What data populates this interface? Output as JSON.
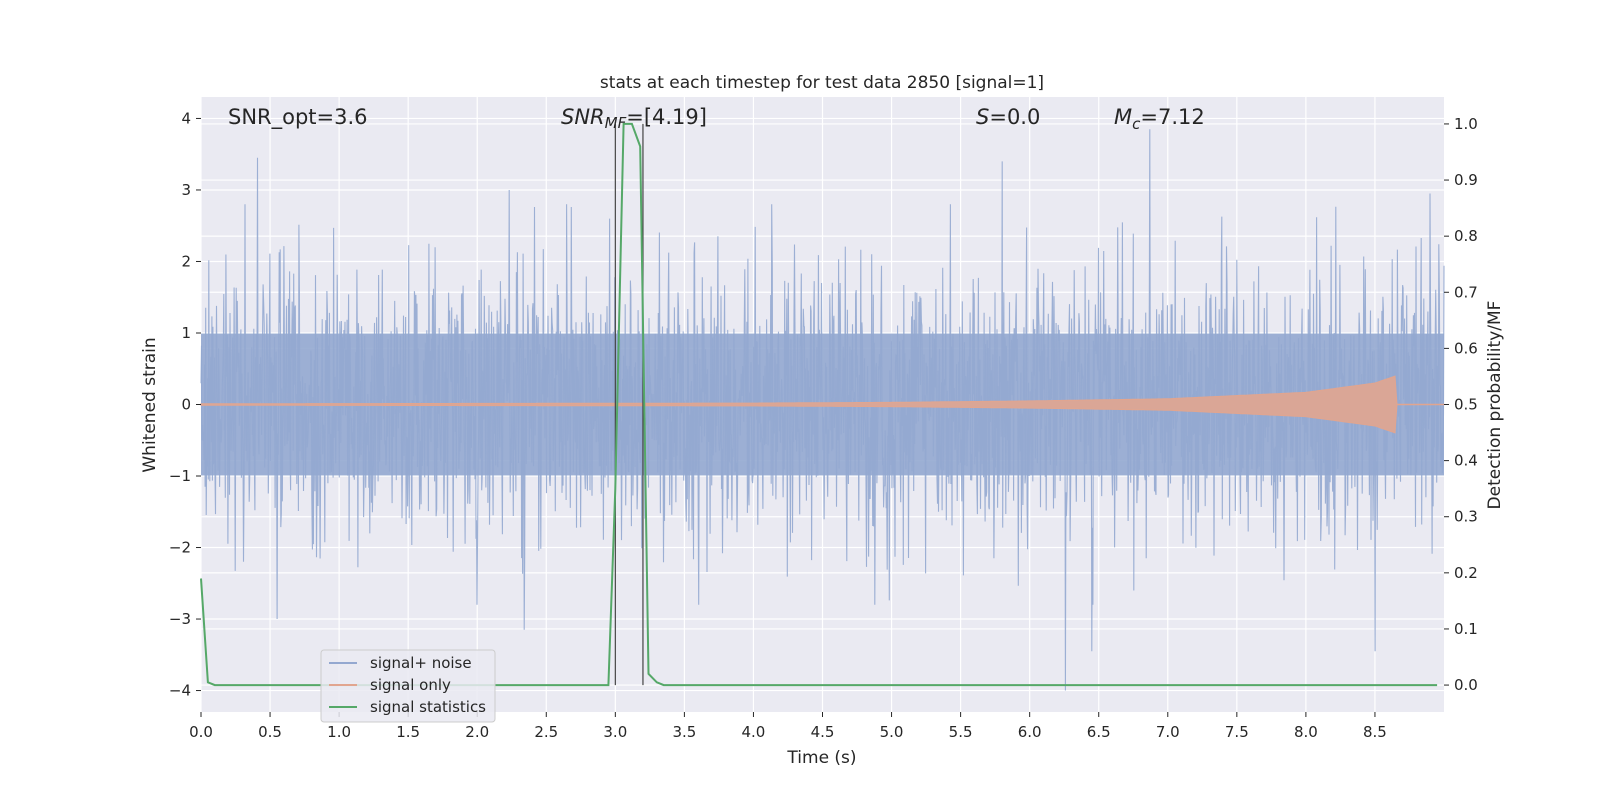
{
  "chart_data": {
    "type": "line",
    "title": "stats at each timestep for test data 2850 [signal=1]",
    "xlabel": "Time (s)",
    "ylabel_left": "Whitened strain",
    "ylabel_right": "Detection probability/MF",
    "xlim": [
      0.0,
      9.0
    ],
    "ylim_left": [
      -4.3,
      4.3
    ],
    "ylim_right": [
      -0.048,
      1.048
    ],
    "x_ticks": [
      "0.0",
      "0.5",
      "1.0",
      "1.5",
      "2.0",
      "2.5",
      "3.0",
      "3.5",
      "4.0",
      "4.5",
      "5.0",
      "5.5",
      "6.0",
      "6.5",
      "7.0",
      "7.5",
      "8.0",
      "8.5"
    ],
    "y_ticks_left": [
      "4",
      "3",
      "2",
      "1",
      "0",
      "−1",
      "−2",
      "−3",
      "−4"
    ],
    "y_ticks_right": [
      "1.0",
      "0.9",
      "0.8",
      "0.7",
      "0.6",
      "0.5",
      "0.4",
      "0.3",
      "0.2",
      "0.1",
      "0.0"
    ],
    "grid": true,
    "legend_position": "lower-left",
    "annotations": {
      "snr_opt": "SNR_opt=3.6",
      "snr_mf_base": "SNR",
      "snr_mf_sub": "MF",
      "snr_mf_rest": "=[4.19]",
      "s_var": "S",
      "s_rest": "=0.0",
      "mc_base": "M",
      "mc_sub": "c",
      "mc_rest": "=7.12"
    },
    "vertical_markers_x": [
      3.0,
      3.2
    ],
    "series": [
      {
        "name": "signal+ noise",
        "axis": "left",
        "color": "#94a8d0",
        "x_range": [
          0.0,
          9.0
        ],
        "typical_envelope": [
          -1.6,
          1.6
        ],
        "notable_peaks": [
          [
            0.41,
            3.45
          ],
          [
            2.23,
            3.0
          ],
          [
            2.96,
            2.6
          ],
          [
            5.8,
            3.4
          ],
          [
            6.87,
            3.85
          ],
          [
            8.9,
            2.95
          ]
        ],
        "notable_troughs": [
          [
            0.55,
            -3.0
          ],
          [
            2.34,
            -3.15
          ],
          [
            6.26,
            -4.0
          ],
          [
            6.45,
            -3.45
          ],
          [
            8.5,
            -3.45
          ]
        ]
      },
      {
        "name": "signal only",
        "axis": "left",
        "color": "#e1a58f",
        "x": [
          0.0,
          2.0,
          4.0,
          5.0,
          6.0,
          7.0,
          8.0,
          8.5,
          8.65,
          8.66
        ],
        "amplitude": [
          0.01,
          0.015,
          0.02,
          0.03,
          0.05,
          0.08,
          0.17,
          0.3,
          0.4,
          0.0
        ]
      },
      {
        "name": "signal statistics",
        "axis": "right",
        "color": "#55a868",
        "x": [
          0.0,
          0.05,
          0.1,
          2.95,
          3.0,
          3.06,
          3.12,
          3.18,
          3.24,
          3.3,
          3.35,
          8.95
        ],
        "values": [
          0.19,
          0.005,
          0.0,
          0.0,
          0.35,
          1.0,
          1.0,
          0.96,
          0.02,
          0.005,
          0.0,
          0.0
        ]
      }
    ]
  }
}
